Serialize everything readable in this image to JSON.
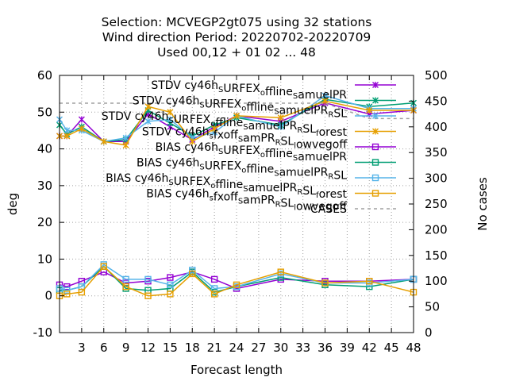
{
  "chart_data": {
    "type": "line",
    "title_lines": [
      "Selection: MCVEGP2gt075 using    32 stations",
      "Wind direction   Period: 20220702-20220709",
      "Used  00,12  + 01 02 ... 48"
    ],
    "xlabel": "Forecast length",
    "ylabel": "deg",
    "y2label": "No cases",
    "xlim": [
      0,
      48
    ],
    "ylim": [
      -10,
      60
    ],
    "y2lim": [
      0,
      500
    ],
    "xticks": [
      3,
      6,
      9,
      12,
      15,
      18,
      21,
      24,
      27,
      30,
      33,
      36,
      39,
      42,
      45,
      48
    ],
    "yticks": [
      -10,
      0,
      10,
      20,
      30,
      40,
      50,
      60
    ],
    "y2ticks": [
      0,
      50,
      100,
      150,
      200,
      250,
      300,
      350,
      400,
      450,
      500
    ],
    "grid": true,
    "legend_position": "top-right",
    "series": [
      {
        "name": "STDV cy46h_S URFEX_o ffline_S amuelPR",
        "legend_parts": [
          [
            "STDV cy46h",
            "n"
          ],
          [
            "S",
            "sub"
          ],
          [
            "URFEX",
            "n"
          ],
          [
            "o",
            "sub"
          ],
          [
            "ffline",
            "n"
          ],
          [
            "S",
            "sub"
          ],
          [
            "amuelPR",
            "n"
          ]
        ],
        "color": "#9400d3",
        "marker": "x",
        "axis": "y1",
        "x": [
          0,
          1,
          3,
          6,
          9,
          12,
          15,
          18,
          21,
          24,
          30,
          36,
          42,
          48
        ],
        "y": [
          43.5,
          43.5,
          48.0,
          42.0,
          42.0,
          49.5,
          46.0,
          42.5,
          46.0,
          49.0,
          47.5,
          52.5,
          49.5,
          50.5
        ]
      },
      {
        "name": "STDV cy46h_S URFEX_o ffline_S amuelPR_R SL",
        "legend_parts": [
          [
            "STDV cy46h",
            "n"
          ],
          [
            "S",
            "sub"
          ],
          [
            "URFEX",
            "n"
          ],
          [
            "o",
            "sub"
          ],
          [
            "ffline",
            "n"
          ],
          [
            "S",
            "sub"
          ],
          [
            "amuelPR",
            "n"
          ],
          [
            "R",
            "sub"
          ],
          [
            "SL",
            "n"
          ]
        ],
        "color": "#009e73",
        "marker": "x",
        "axis": "y1",
        "x": [
          0,
          1,
          3,
          6,
          9,
          12,
          15,
          18,
          21,
          24,
          30,
          36,
          42,
          48
        ],
        "y": [
          46.5,
          44.0,
          46.0,
          42.0,
          42.5,
          50.5,
          47.0,
          43.5,
          46.5,
          48.5,
          46.5,
          53.5,
          51.5,
          52.5
        ]
      },
      {
        "name": "STDV cy46h_S URFEX_o ffline_S amuelPR_R SL_f orest",
        "legend_parts": [
          [
            "STDV cy46h",
            "n"
          ],
          [
            "S",
            "sub"
          ],
          [
            "URFEX",
            "n"
          ],
          [
            "o",
            "sub"
          ],
          [
            "ffline",
            "n"
          ],
          [
            "S",
            "sub"
          ],
          [
            "amuelPR",
            "n"
          ],
          [
            "R",
            "sub"
          ],
          [
            "SL",
            "n"
          ],
          [
            "f",
            "sub"
          ],
          [
            "orest",
            "n"
          ]
        ],
        "color": "#56b4e9",
        "marker": "x",
        "axis": "y1",
        "x": [
          0,
          1,
          3,
          6,
          9,
          12,
          15,
          18,
          21,
          24,
          30,
          36,
          42,
          48
        ],
        "y": [
          48.0,
          45.0,
          45.0,
          42.0,
          43.0,
          47.5,
          48.0,
          43.0,
          44.5,
          49.0,
          46.0,
          54.5,
          51.0,
          51.0
        ]
      },
      {
        "name": "STDV cy46h_s fxoff_S amPR_R SL_l owvegoff",
        "legend_parts": [
          [
            "STDV cy46h",
            "n"
          ],
          [
            "s",
            "sub"
          ],
          [
            "fxoff",
            "n"
          ],
          [
            "S",
            "sub"
          ],
          [
            "amPR",
            "n"
          ],
          [
            "R",
            "sub"
          ],
          [
            "SL",
            "n"
          ],
          [
            "l",
            "sub"
          ],
          [
            "owvegoff",
            "n"
          ]
        ],
        "color": "#e69f00",
        "marker": "x",
        "axis": "y1",
        "x": [
          0,
          1,
          3,
          6,
          9,
          12,
          15,
          18,
          21,
          24,
          30,
          36,
          42,
          48
        ],
        "y": [
          43.5,
          43.5,
          45.5,
          42.0,
          41.0,
          51.5,
          50.0,
          42.0,
          45.5,
          49.0,
          48.5,
          53.0,
          50.5,
          50.5
        ]
      },
      {
        "name": "BIAS cy46h_S URFEX_o ffline_S amuelPR",
        "legend_parts": [
          [
            "BIAS cy46h",
            "n"
          ],
          [
            "S",
            "sub"
          ],
          [
            "URFEX",
            "n"
          ],
          [
            "o",
            "sub"
          ],
          [
            "ffline",
            "n"
          ],
          [
            "S",
            "sub"
          ],
          [
            "amuelPR",
            "n"
          ]
        ],
        "color": "#9400d3",
        "marker": "square",
        "axis": "y1",
        "x": [
          0,
          1,
          3,
          6,
          9,
          12,
          15,
          18,
          21,
          24,
          30,
          36,
          42,
          48
        ],
        "y": [
          3.0,
          2.5,
          4.0,
          6.5,
          3.5,
          4.0,
          5.0,
          6.5,
          4.5,
          2.0,
          4.5,
          4.0,
          4.0,
          4.5
        ]
      },
      {
        "name": "BIAS cy46h_S URFEX_o ffline_S amuelPR_R SL",
        "legend_parts": [
          [
            "BIAS cy46h",
            "n"
          ],
          [
            "S",
            "sub"
          ],
          [
            "URFEX",
            "n"
          ],
          [
            "o",
            "sub"
          ],
          [
            "ffline",
            "n"
          ],
          [
            "S",
            "sub"
          ],
          [
            "amuelPR",
            "n"
          ],
          [
            "R",
            "sub"
          ],
          [
            "SL",
            "n"
          ]
        ],
        "color": "#009e73",
        "marker": "square",
        "axis": "y1",
        "x": [
          0,
          1,
          3,
          6,
          9,
          12,
          15,
          18,
          21,
          24,
          30,
          36,
          42,
          48
        ],
        "y": [
          1.5,
          1.5,
          2.5,
          8.0,
          2.0,
          1.5,
          2.0,
          6.5,
          1.0,
          2.5,
          5.0,
          3.0,
          2.5,
          4.5
        ]
      },
      {
        "name": "BIAS cy46h_S URFEX_o ffline_S amuelPR_R SL_f orest",
        "legend_parts": [
          [
            "BIAS cy46h",
            "n"
          ],
          [
            "S",
            "sub"
          ],
          [
            "URFEX",
            "n"
          ],
          [
            "o",
            "sub"
          ],
          [
            "ffline",
            "n"
          ],
          [
            "S",
            "sub"
          ],
          [
            "amuelPR",
            "n"
          ],
          [
            "R",
            "sub"
          ],
          [
            "SL",
            "n"
          ],
          [
            "f",
            "sub"
          ],
          [
            "orest",
            "n"
          ]
        ],
        "color": "#56b4e9",
        "marker": "square",
        "axis": "y1",
        "x": [
          0,
          1,
          3,
          6,
          9,
          12,
          15,
          18,
          21,
          24,
          30,
          36,
          42,
          48
        ],
        "y": [
          2.0,
          1.5,
          2.5,
          8.5,
          4.5,
          4.5,
          3.0,
          7.0,
          2.0,
          2.5,
          6.0,
          3.5,
          3.5,
          4.5
        ]
      },
      {
        "name": "BIAS cy46h_s fxoff_S amPR_R SL_l owvegoff",
        "legend_parts": [
          [
            "BIAS cy46h",
            "n"
          ],
          [
            "s",
            "sub"
          ],
          [
            "fxoff",
            "n"
          ],
          [
            "S",
            "sub"
          ],
          [
            "amPR",
            "n"
          ],
          [
            "R",
            "sub"
          ],
          [
            "SL",
            "n"
          ],
          [
            "l",
            "sub"
          ],
          [
            "owvegoff",
            "n"
          ]
        ],
        "color": "#e69f00",
        "marker": "square",
        "axis": "y1",
        "x": [
          0,
          1,
          3,
          6,
          9,
          12,
          15,
          18,
          21,
          24,
          30,
          36,
          42,
          48
        ],
        "y": [
          0.0,
          0.5,
          1.0,
          8.0,
          2.5,
          0.0,
          0.5,
          6.0,
          0.5,
          3.0,
          6.5,
          3.5,
          4.0,
          1.0
        ]
      },
      {
        "name": "CASES",
        "legend_parts": [
          [
            "CASES",
            "n"
          ]
        ],
        "color": "#a0a0a0",
        "marker": "none",
        "axis": "y2",
        "dashed": true,
        "x": [
          0,
          1,
          3,
          6,
          9,
          12,
          15,
          18,
          21,
          24,
          30,
          36,
          42,
          48
        ],
        "y": [
          446,
          446,
          446,
          446,
          446,
          446,
          446,
          446,
          446,
          446,
          446,
          446,
          416,
          416
        ]
      }
    ]
  }
}
